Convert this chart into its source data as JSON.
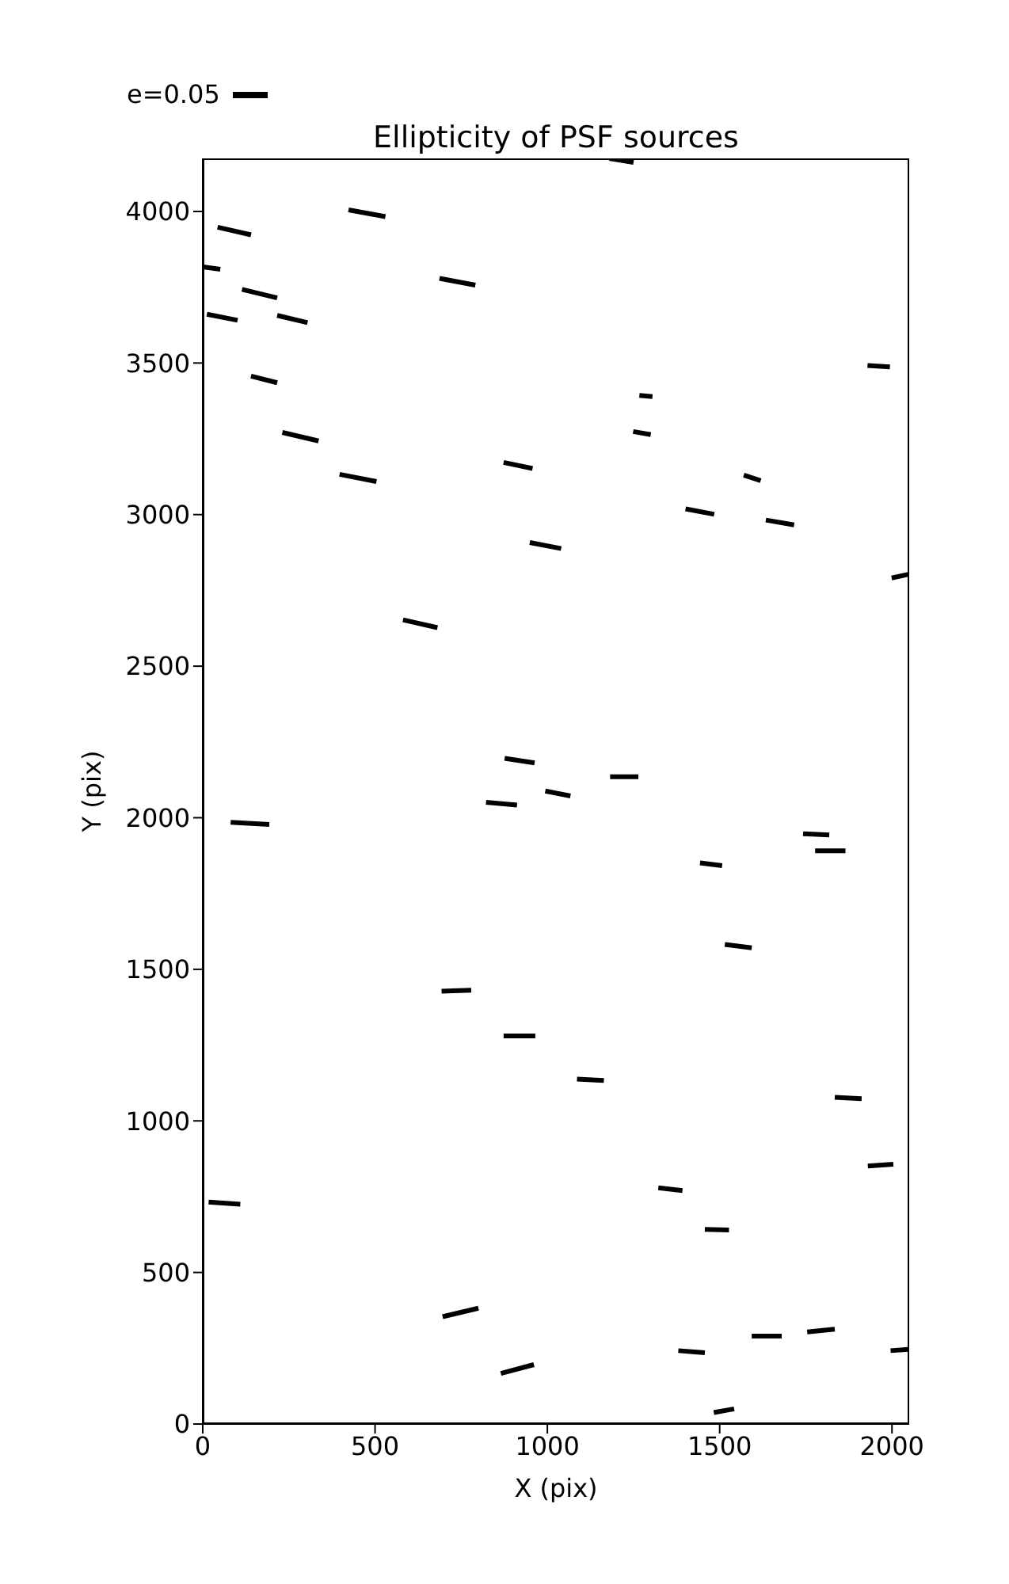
{
  "chart_data": {
    "type": "line",
    "title": "Ellipticity of PSF sources",
    "xlabel": "X (pix)",
    "ylabel": "Y (pix)",
    "annotations": [
      "e=0.05"
    ],
    "marker": "none",
    "line_style": "solid",
    "xlim": [
      0,
      2050
    ],
    "ylim": [
      0,
      4175
    ],
    "xticks": [
      0,
      500,
      1000,
      1500,
      2000
    ],
    "yticks": [
      0,
      500,
      1000,
      1500,
      2000,
      2500,
      3000,
      3500,
      4000
    ],
    "series": [
      {
        "color": "#000000",
        "x": [
          1180,
          1250
        ],
        "values": [
          4175,
          4162
        ]
      },
      {
        "color": "#000000",
        "x": [
          423,
          530
        ],
        "values": [
          4005,
          3983
        ]
      },
      {
        "color": "#000000",
        "x": [
          43,
          140
        ],
        "values": [
          3948,
          3923
        ]
      },
      {
        "color": "#000000",
        "x": [
          1,
          51
        ],
        "values": [
          3817,
          3809
        ]
      },
      {
        "color": "#000000",
        "x": [
          687,
          791
        ],
        "values": [
          3779,
          3757
        ]
      },
      {
        "color": "#000000",
        "x": [
          114,
          216
        ],
        "values": [
          3743,
          3715
        ]
      },
      {
        "color": "#000000",
        "x": [
          12,
          101
        ],
        "values": [
          3661,
          3641
        ]
      },
      {
        "color": "#000000",
        "x": [
          216,
          304
        ],
        "values": [
          3657,
          3633
        ]
      },
      {
        "color": "#000000",
        "x": [
          140,
          216
        ],
        "values": [
          3457,
          3435
        ]
      },
      {
        "color": "#000000",
        "x": [
          1929,
          1994
        ],
        "values": [
          3492,
          3487
        ]
      },
      {
        "color": "#000000",
        "x": [
          1267,
          1305
        ],
        "values": [
          3393,
          3389
        ]
      },
      {
        "color": "#000000",
        "x": [
          1249,
          1300
        ],
        "values": [
          3274,
          3264
        ]
      },
      {
        "color": "#000000",
        "x": [
          231,
          336
        ],
        "values": [
          3271,
          3243
        ]
      },
      {
        "color": "#000000",
        "x": [
          397,
          504
        ],
        "values": [
          3133,
          3109
        ]
      },
      {
        "color": "#000000",
        "x": [
          873,
          957
        ],
        "values": [
          3172,
          3152
        ]
      },
      {
        "color": "#000000",
        "x": [
          1570,
          1619
        ],
        "values": [
          3130,
          3112
        ]
      },
      {
        "color": "#000000",
        "x": [
          1401,
          1484
        ],
        "values": [
          3019,
          3001
        ]
      },
      {
        "color": "#000000",
        "x": [
          1634,
          1716
        ],
        "values": [
          2982,
          2966
        ]
      },
      {
        "color": "#000000",
        "x": [
          949,
          1040
        ],
        "values": [
          2908,
          2888
        ]
      },
      {
        "color": "#000000",
        "x": [
          1999,
          2048
        ],
        "values": [
          2791,
          2803
        ]
      },
      {
        "color": "#000000",
        "x": [
          581,
          681
        ],
        "values": [
          2653,
          2627
        ]
      },
      {
        "color": "#000000",
        "x": [
          876,
          963
        ],
        "values": [
          2196,
          2181
        ]
      },
      {
        "color": "#000000",
        "x": [
          1182,
          1264
        ],
        "values": [
          2135,
          2135
        ]
      },
      {
        "color": "#000000",
        "x": [
          994,
          1067
        ],
        "values": [
          2088,
          2072
        ]
      },
      {
        "color": "#000000",
        "x": [
          822,
          912
        ],
        "values": [
          2051,
          2042
        ]
      },
      {
        "color": "#000000",
        "x": [
          81,
          193
        ],
        "values": [
          1985,
          1978
        ]
      },
      {
        "color": "#000000",
        "x": [
          1742,
          1818
        ],
        "values": [
          1947,
          1943
        ]
      },
      {
        "color": "#000000",
        "x": [
          1777,
          1865
        ],
        "values": [
          1891,
          1891
        ]
      },
      {
        "color": "#000000",
        "x": [
          1443,
          1507
        ],
        "values": [
          1851,
          1842
        ]
      },
      {
        "color": "#000000",
        "x": [
          1515,
          1593
        ],
        "values": [
          1582,
          1571
        ]
      },
      {
        "color": "#000000",
        "x": [
          693,
          779
        ],
        "values": [
          1428,
          1431
        ]
      },
      {
        "color": "#000000",
        "x": [
          873,
          965
        ],
        "values": [
          1280,
          1280
        ]
      },
      {
        "color": "#000000",
        "x": [
          1086,
          1164
        ],
        "values": [
          1138,
          1133
        ]
      },
      {
        "color": "#000000",
        "x": [
          1834,
          1912
        ],
        "values": [
          1078,
          1073
        ]
      },
      {
        "color": "#000000",
        "x": [
          1930,
          2004
        ],
        "values": [
          851,
          857
        ]
      },
      {
        "color": "#000000",
        "x": [
          17,
          109
        ],
        "values": [
          732,
          725
        ]
      },
      {
        "color": "#000000",
        "x": [
          1322,
          1392
        ],
        "values": [
          779,
          770
        ]
      },
      {
        "color": "#000000",
        "x": [
          1457,
          1527
        ],
        "values": [
          642,
          640
        ]
      },
      {
        "color": "#000000",
        "x": [
          696,
          800
        ],
        "values": [
          354,
          382
        ]
      },
      {
        "color": "#000000",
        "x": [
          1593,
          1680
        ],
        "values": [
          290,
          290
        ]
      },
      {
        "color": "#000000",
        "x": [
          1754,
          1834
        ],
        "values": [
          304,
          313
        ]
      },
      {
        "color": "#000000",
        "x": [
          1380,
          1457
        ],
        "values": [
          242,
          235
        ]
      },
      {
        "color": "#000000",
        "x": [
          1996,
          2048
        ],
        "values": [
          242,
          246
        ]
      },
      {
        "color": "#000000",
        "x": [
          865,
          961
        ],
        "values": [
          167,
          196
        ]
      },
      {
        "color": "#000000",
        "x": [
          1483,
          1542
        ],
        "values": [
          38,
          50
        ]
      }
    ]
  }
}
